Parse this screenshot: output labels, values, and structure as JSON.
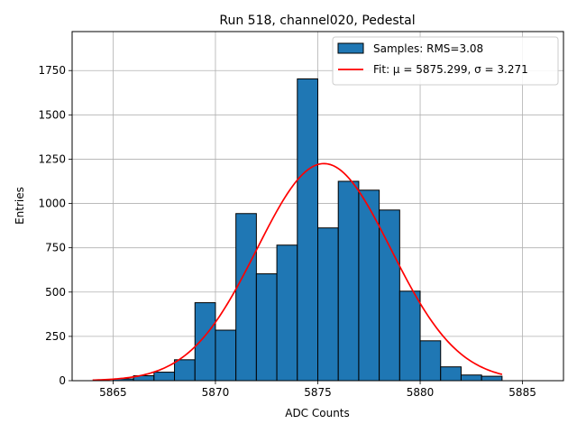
{
  "colors": {
    "bar_fill": "#1f77b4",
    "bar_edge": "#000000",
    "fit_line": "#ff0000",
    "grid": "#b0b0b0",
    "background": "#ffffff"
  },
  "chart_data": {
    "type": "bar",
    "title": "Run 518, channel020, Pedestal",
    "xlabel": "ADC Counts",
    "ylabel": "Entries",
    "xlim": [
      5863,
      5887
    ],
    "ylim": [
      0,
      1970
    ],
    "xticks": [
      5865,
      5870,
      5875,
      5880,
      5885
    ],
    "yticks": [
      0,
      250,
      500,
      750,
      1000,
      1250,
      1500,
      1750
    ],
    "grid": true,
    "legend_position": "top-right",
    "histogram": {
      "name": "Samples: RMS=3.08",
      "bin_width": 1,
      "bin_starts": [
        5865,
        5866,
        5867,
        5868,
        5869,
        5870,
        5871,
        5872,
        5873,
        5874,
        5875,
        5876,
        5877,
        5878,
        5879,
        5880,
        5881,
        5882,
        5883
      ],
      "values": [
        10,
        28,
        48,
        118,
        440,
        285,
        943,
        603,
        765,
        1703,
        862,
        1125,
        1075,
        963,
        505,
        225,
        78,
        32,
        25
      ]
    },
    "fit": {
      "name": "Fit: μ = 5875.299, σ = 3.271",
      "mu": 5875.299,
      "sigma": 3.271,
      "amplitude": 1225,
      "x_range": [
        5864,
        5884
      ]
    }
  }
}
